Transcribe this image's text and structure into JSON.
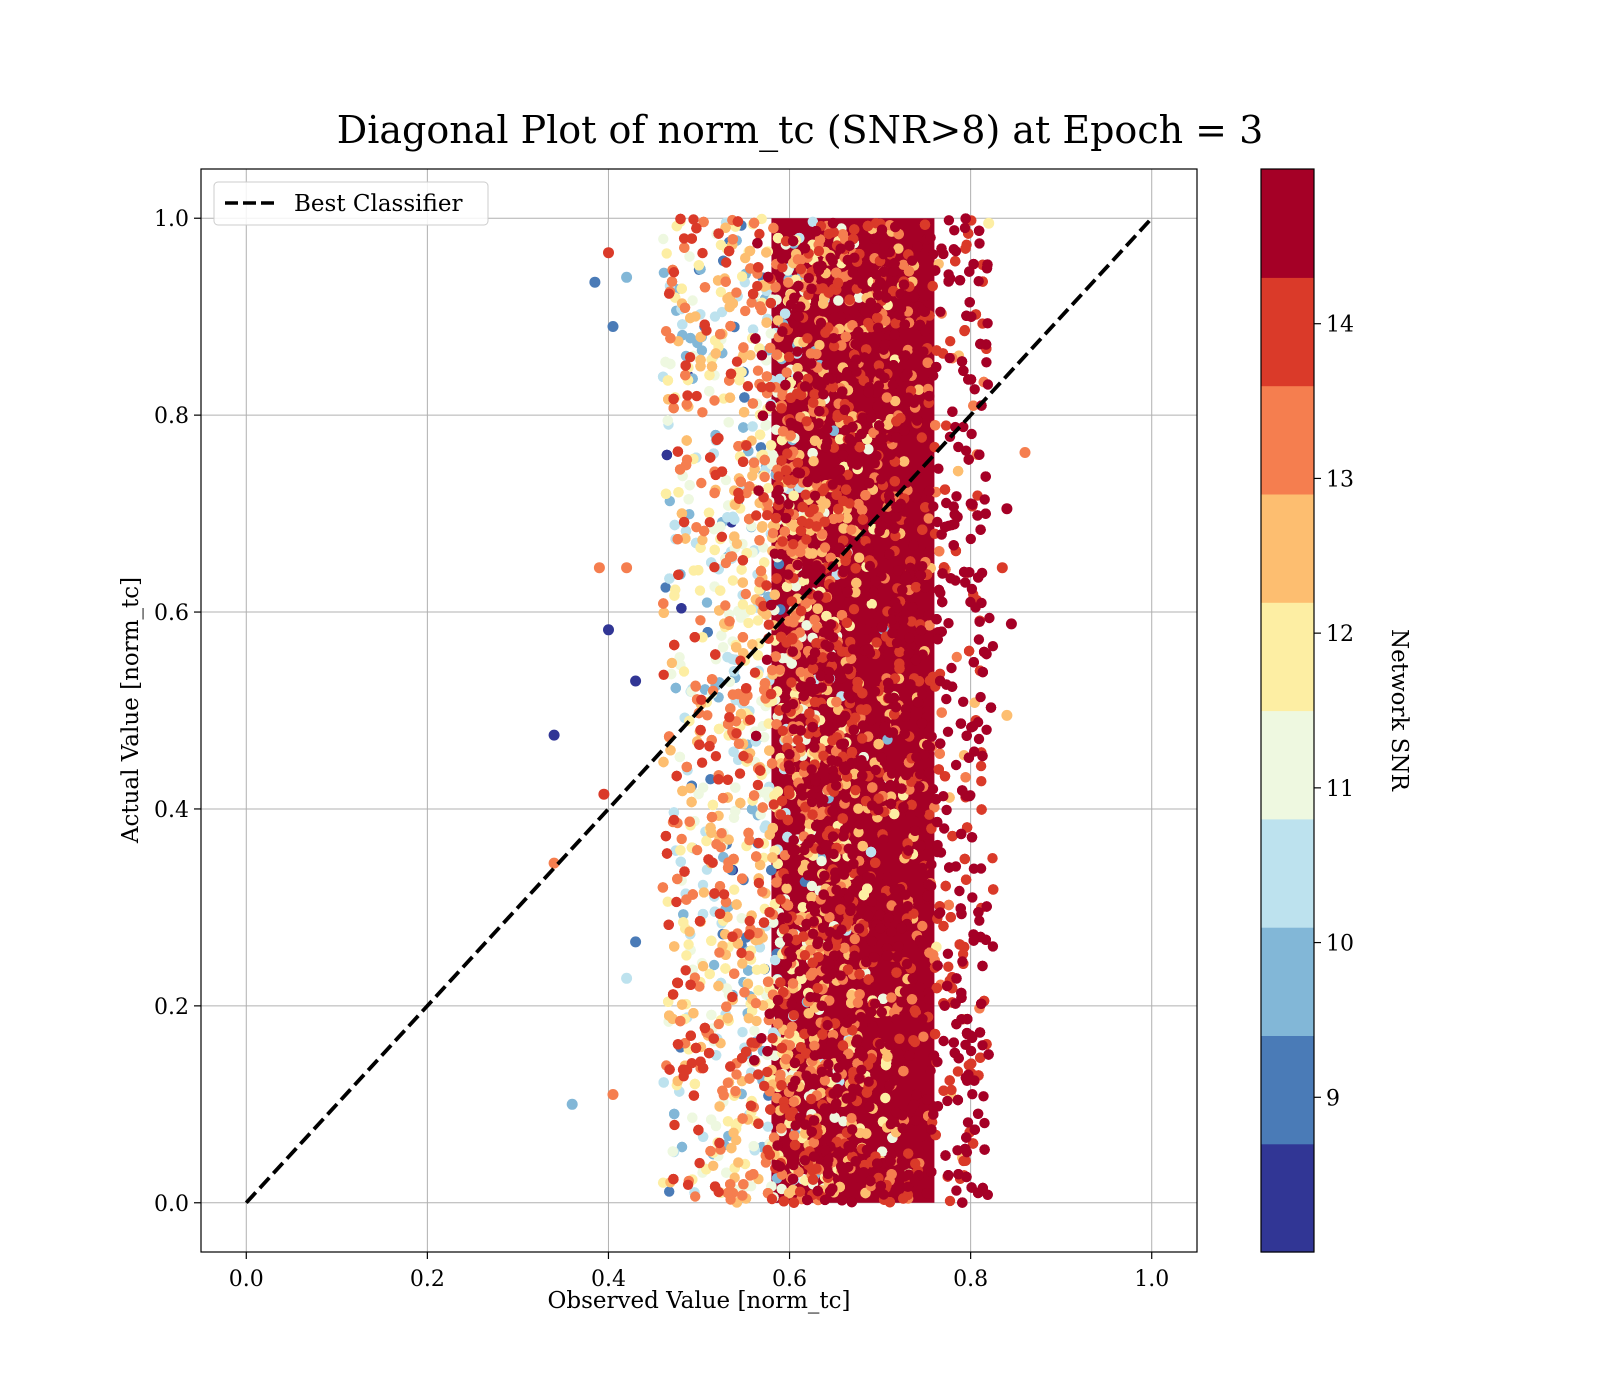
{
  "chart_data": {
    "type": "scatter",
    "title": "Diagonal Plot of norm_tc (SNR>8) at Epoch = 3",
    "xlabel": "Observed Value [norm_tc]",
    "ylabel": "Actual Value [norm_tc]",
    "xlim": [
      -0.05,
      1.05
    ],
    "ylim": [
      -0.05,
      1.05
    ],
    "xticks": [
      "0.0",
      "0.2",
      "0.4",
      "0.6",
      "0.8",
      "1.0"
    ],
    "xtick_values": [
      0.0,
      0.2,
      0.4,
      0.6,
      0.8,
      1.0
    ],
    "yticks": [
      "0.0",
      "0.2",
      "0.4",
      "0.6",
      "0.8",
      "1.0"
    ],
    "ytick_values": [
      0.0,
      0.2,
      0.4,
      0.6,
      0.8,
      1.0
    ],
    "grid": true,
    "legend": {
      "placement": "upper-left",
      "entries": [
        {
          "label": "Best Classifier",
          "style": "dashed",
          "color": "#000000"
        }
      ]
    },
    "reference_line": {
      "name": "Best Classifier",
      "x": [
        0.0,
        1.0
      ],
      "y": [
        0.0,
        1.0
      ],
      "style": "dashed",
      "color": "#000000"
    },
    "colorbar": {
      "label": "Network SNR",
      "range": [
        8,
        15
      ],
      "ticks": [
        "9",
        "10",
        "11",
        "12",
        "13",
        "14"
      ],
      "tick_values": [
        9,
        10,
        11,
        12,
        13,
        14
      ],
      "colors": [
        "#313695",
        "#4575b4",
        "#74add1",
        "#abd9e9",
        "#e0f3f8",
        "#ffffbf",
        "#fee090",
        "#fdae61",
        "#f46d43",
        "#d73027",
        "#a50026"
      ],
      "band_colors": [
        "#313695",
        "#4a7bb7",
        "#82b7d7",
        "#bde2ee",
        "#eef8e0",
        "#fdeea3",
        "#fdbe70",
        "#f57e4f",
        "#da3a29",
        "#a50026"
      ]
    },
    "series": [
      {
        "distribution": "dense vertical band of points; observed value concentrated between about 0.48 and 0.82 for actual values across 0.0 to 1.0; higher SNR points lie at larger observed values",
        "x_range": [
          0.34,
          0.86
        ],
        "y_range": [
          0.0,
          1.0
        ],
        "core_x_range": [
          0.58,
          0.76
        ],
        "outliers": [
          {
            "x": 0.34,
            "y": 0.475,
            "snr": 8.2
          },
          {
            "x": 0.385,
            "y": 0.935,
            "snr": 9.0
          },
          {
            "x": 0.36,
            "y": 0.1,
            "snr": 10.0
          },
          {
            "x": 0.405,
            "y": 0.11,
            "snr": 13.0
          },
          {
            "x": 0.395,
            "y": 0.415,
            "snr": 14.0
          },
          {
            "x": 0.34,
            "y": 0.345,
            "snr": 13.0
          },
          {
            "x": 0.39,
            "y": 0.645,
            "snr": 13.0
          },
          {
            "x": 0.42,
            "y": 0.645,
            "snr": 13.0
          },
          {
            "x": 0.4,
            "y": 0.582,
            "snr": 8.6
          },
          {
            "x": 0.86,
            "y": 0.762,
            "snr": 13.0
          },
          {
            "x": 0.845,
            "y": 0.588,
            "snr": 14.8
          },
          {
            "x": 0.84,
            "y": 0.495,
            "snr": 12.7
          },
          {
            "x": 0.84,
            "y": 0.705,
            "snr": 14.8
          },
          {
            "x": 0.835,
            "y": 0.645,
            "snr": 13.8
          },
          {
            "x": 0.82,
            "y": 0.995,
            "snr": 11.6
          },
          {
            "x": 0.405,
            "y": 0.89,
            "snr": 9.3
          },
          {
            "x": 0.42,
            "y": 0.94,
            "snr": 10.1
          },
          {
            "x": 0.43,
            "y": 0.53,
            "snr": 8.3
          },
          {
            "x": 0.43,
            "y": 0.265,
            "snr": 9.0
          },
          {
            "x": 0.42,
            "y": 0.228,
            "snr": 10.6
          },
          {
            "x": 0.4,
            "y": 0.965,
            "snr": 14.0
          }
        ]
      }
    ]
  }
}
